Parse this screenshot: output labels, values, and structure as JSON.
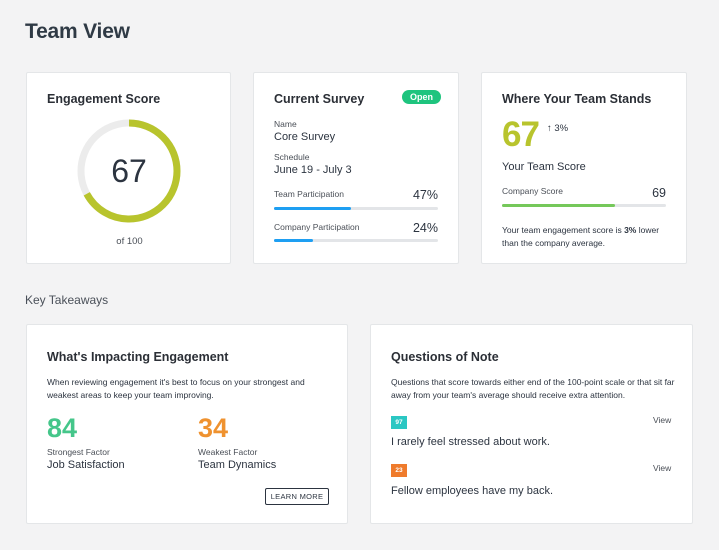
{
  "page": {
    "title": "Team View"
  },
  "engagement": {
    "title": "Engagement Score",
    "value": "67",
    "of_text": "of 100",
    "score_fraction": 0.67,
    "ring_color": "#b8c42d",
    "track_color": "#ececec"
  },
  "survey": {
    "title": "Current Survey",
    "status": "Open",
    "name_label": "Name",
    "name_value": "Core Survey",
    "schedule_label": "Schedule",
    "schedule_value": "June 19 - July 3",
    "team_participation_label": "Team Participation",
    "team_participation_value": "47%",
    "team_participation_fraction": 0.47,
    "company_participation_label": "Company Participation",
    "company_participation_value": "24%",
    "company_participation_fraction": 0.24,
    "bar_color": "#1e9ff2"
  },
  "stands": {
    "title": "Where Your Team Stands",
    "score": "67",
    "trend_arrow": "↑",
    "trend_value": "3%",
    "score_label": "Your Team Score",
    "company_label": "Company Score",
    "company_value": "69",
    "company_fraction": 0.69,
    "bar_color": "#75c85a",
    "compare_prefix": "Your team engagement score is ",
    "compare_bold": "3%",
    "compare_suffix": " lower than the company average."
  },
  "takeaways": {
    "section_title": "Key Takeaways"
  },
  "impact": {
    "title": "What's Impacting Engagement",
    "description": "When reviewing engagement it's best to focus on your strongest and weakest areas to keep your team improving.",
    "strongest": {
      "value": "84",
      "label": "Strongest Factor",
      "name": "Job Satisfaction",
      "color": "#45c68a"
    },
    "weakest": {
      "value": "34",
      "label": "Weakest Factor",
      "name": "Team Dynamics",
      "color": "#ef922f"
    },
    "button_label": "LEARN MORE"
  },
  "questions": {
    "title": "Questions of Note",
    "description": "Questions that score towards either end of the 100-point scale or that sit far away from your team's average should receive extra attention.",
    "items": [
      {
        "score": "97",
        "color": "#2bc7c3",
        "view_label": "View",
        "text": "I rarely feel stressed about work."
      },
      {
        "score": "23",
        "color": "#ef7b2c",
        "view_label": "View",
        "text": "Fellow employees have my back."
      }
    ]
  }
}
